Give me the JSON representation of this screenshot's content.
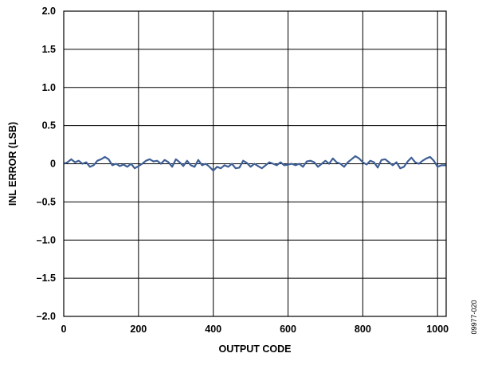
{
  "chart_data": {
    "type": "line",
    "title": "",
    "xlabel": "OUTPUT CODE",
    "ylabel": "INL ERROR (LSB)",
    "xlim": [
      0,
      1023
    ],
    "ylim": [
      -2.0,
      2.0
    ],
    "x_ticks": [
      0,
      200,
      400,
      600,
      800,
      1000
    ],
    "x_tick_labels": [
      "0",
      "200",
      "400",
      "600",
      "800",
      "1000"
    ],
    "y_ticks": [
      2.0,
      1.5,
      1.0,
      0.5,
      0,
      -0.5,
      -1.0,
      -1.5,
      -2.0
    ],
    "y_tick_labels": [
      "2.0",
      "1.5",
      "1.0",
      "0.5",
      "0",
      "–0.5",
      "–1.0",
      "–1.5",
      "–2.0"
    ],
    "x_gridlines": [
      0,
      200,
      400,
      600,
      800,
      1000
    ],
    "grid": true,
    "legend": "none",
    "line_color": "#3e5f95",
    "series": [
      {
        "x": [
          0,
          10,
          20,
          30,
          40,
          50,
          60,
          70,
          80,
          90,
          100,
          110,
          120,
          130,
          140,
          150,
          160,
          170,
          180,
          190,
          200,
          210,
          220,
          230,
          240,
          250,
          260,
          270,
          280,
          290,
          300,
          310,
          320,
          330,
          340,
          350,
          360,
          370,
          380,
          390,
          400,
          410,
          420,
          430,
          440,
          450,
          460,
          470,
          480,
          490,
          500,
          510,
          520,
          530,
          540,
          550,
          560,
          570,
          580,
          590,
          600,
          610,
          620,
          630,
          640,
          650,
          660,
          670,
          680,
          690,
          700,
          710,
          720,
          730,
          740,
          750,
          760,
          770,
          780,
          790,
          800,
          810,
          820,
          830,
          840,
          850,
          860,
          870,
          880,
          890,
          900,
          910,
          920,
          930,
          940,
          950,
          960,
          970,
          980,
          990,
          1000,
          1010,
          1023
        ],
        "values": [
          0.0,
          0.02,
          0.06,
          0.02,
          0.04,
          0.0,
          0.02,
          -0.04,
          -0.02,
          0.04,
          0.06,
          0.09,
          0.06,
          -0.02,
          0.0,
          -0.03,
          -0.01,
          -0.04,
          0.0,
          -0.06,
          -0.03,
          0.0,
          0.04,
          0.06,
          0.03,
          0.04,
          0.0,
          0.05,
          0.02,
          -0.04,
          0.06,
          0.02,
          -0.03,
          0.04,
          -0.02,
          -0.04,
          0.05,
          -0.02,
          0.0,
          -0.04,
          -0.09,
          -0.04,
          -0.06,
          -0.02,
          -0.04,
          0.0,
          -0.06,
          -0.05,
          0.04,
          0.01,
          -0.04,
          0.0,
          -0.03,
          -0.06,
          -0.02,
          0.02,
          0.0,
          -0.02,
          0.02,
          -0.02,
          -0.01,
          0.0,
          -0.02,
          0.0,
          -0.04,
          0.03,
          0.04,
          0.02,
          -0.04,
          0.0,
          0.04,
          0.0,
          0.07,
          0.02,
          0.0,
          -0.04,
          0.02,
          0.06,
          0.1,
          0.07,
          0.02,
          -0.01,
          0.04,
          0.02,
          -0.05,
          0.05,
          0.06,
          0.02,
          -0.02,
          0.02,
          -0.06,
          -0.04,
          0.03,
          0.08,
          0.02,
          0.0,
          0.04,
          0.07,
          0.09,
          0.04,
          -0.04,
          -0.02,
          -0.02
        ]
      }
    ]
  },
  "figure_id": "09977-020"
}
